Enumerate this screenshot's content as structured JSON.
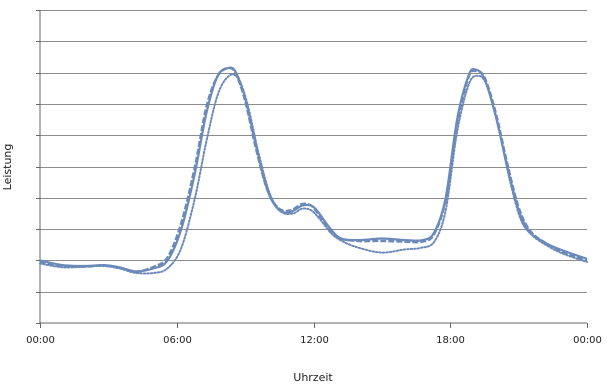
{
  "chart_data": {
    "type": "line",
    "title": "",
    "xlabel": "Uhrzeit",
    "ylabel": "Leistung",
    "x_unit": "hours",
    "xlim": [
      0,
      24
    ],
    "ylim": [
      0,
      10
    ],
    "y_gridlines": [
      1,
      2,
      3,
      4,
      5,
      6,
      7,
      8,
      9,
      10
    ],
    "x_ticks": [
      {
        "value": 0,
        "label": "00:00"
      },
      {
        "value": 6,
        "label": "06:00"
      },
      {
        "value": 12,
        "label": "12:00"
      },
      {
        "value": 18,
        "label": "18:00"
      },
      {
        "value": 24,
        "label": "00:00"
      }
    ],
    "grid": true,
    "legend": "none",
    "line_color": "#6b8ab9",
    "series": [
      {
        "style": "solid",
        "points": [
          [
            0,
            2.0
          ],
          [
            1,
            1.85
          ],
          [
            2,
            1.82
          ],
          [
            2.8,
            1.85
          ],
          [
            3.5,
            1.78
          ],
          [
            4.2,
            1.65
          ],
          [
            5,
            1.75
          ],
          [
            5.6,
            2.0
          ],
          [
            6.2,
            3.0
          ],
          [
            6.8,
            4.8
          ],
          [
            7.3,
            6.7
          ],
          [
            7.8,
            7.9
          ],
          [
            8.3,
            8.15
          ],
          [
            8.6,
            8.0
          ],
          [
            9.0,
            7.2
          ],
          [
            9.5,
            5.6
          ],
          [
            10.0,
            4.2
          ],
          [
            10.5,
            3.6
          ],
          [
            11.0,
            3.55
          ],
          [
            11.5,
            3.75
          ],
          [
            11.9,
            3.75
          ],
          [
            12.2,
            3.55
          ],
          [
            12.7,
            3.05
          ],
          [
            13.2,
            2.7
          ],
          [
            14.0,
            2.65
          ],
          [
            15.0,
            2.7
          ],
          [
            16.0,
            2.65
          ],
          [
            16.8,
            2.65
          ],
          [
            17.3,
            2.9
          ],
          [
            17.8,
            4.0
          ],
          [
            18.3,
            6.5
          ],
          [
            18.8,
            7.9
          ],
          [
            19.1,
            8.1
          ],
          [
            19.5,
            7.8
          ],
          [
            20.0,
            6.6
          ],
          [
            20.5,
            5.0
          ],
          [
            21.0,
            3.6
          ],
          [
            21.5,
            2.9
          ],
          [
            22.2,
            2.55
          ],
          [
            23.0,
            2.3
          ],
          [
            24.0,
            2.05
          ]
        ]
      },
      {
        "style": "dashed",
        "points": [
          [
            0,
            1.95
          ],
          [
            1,
            1.82
          ],
          [
            2,
            1.8
          ],
          [
            2.8,
            1.84
          ],
          [
            3.5,
            1.76
          ],
          [
            4.2,
            1.64
          ],
          [
            5,
            1.8
          ],
          [
            5.6,
            2.1
          ],
          [
            6.2,
            3.2
          ],
          [
            6.8,
            5.0
          ],
          [
            7.3,
            6.9
          ],
          [
            7.8,
            7.9
          ],
          [
            8.3,
            8.15
          ],
          [
            8.6,
            7.95
          ],
          [
            9.0,
            7.1
          ],
          [
            9.5,
            5.5
          ],
          [
            10.0,
            4.2
          ],
          [
            10.5,
            3.65
          ],
          [
            11.0,
            3.6
          ],
          [
            11.5,
            3.8
          ],
          [
            11.9,
            3.75
          ],
          [
            12.2,
            3.5
          ],
          [
            12.7,
            3.0
          ],
          [
            13.2,
            2.7
          ],
          [
            14.0,
            2.62
          ],
          [
            15.0,
            2.62
          ],
          [
            16.0,
            2.6
          ],
          [
            16.8,
            2.6
          ],
          [
            17.3,
            2.85
          ],
          [
            17.8,
            3.95
          ],
          [
            18.3,
            6.4
          ],
          [
            18.8,
            7.85
          ],
          [
            19.1,
            8.05
          ],
          [
            19.5,
            7.85
          ],
          [
            20.0,
            6.7
          ],
          [
            20.5,
            5.1
          ],
          [
            21.0,
            3.7
          ],
          [
            21.5,
            2.95
          ],
          [
            22.2,
            2.55
          ],
          [
            23.0,
            2.25
          ],
          [
            24.0,
            2.0
          ]
        ]
      },
      {
        "style": "dotted",
        "points": [
          [
            0,
            1.9
          ],
          [
            1,
            1.78
          ],
          [
            2,
            1.8
          ],
          [
            2.8,
            1.82
          ],
          [
            3.5,
            1.74
          ],
          [
            4.2,
            1.6
          ],
          [
            5,
            1.6
          ],
          [
            5.6,
            1.75
          ],
          [
            6.2,
            2.4
          ],
          [
            6.8,
            4.0
          ],
          [
            7.3,
            5.8
          ],
          [
            7.8,
            7.3
          ],
          [
            8.3,
            7.9
          ],
          [
            8.7,
            7.8
          ],
          [
            9.1,
            7.0
          ],
          [
            9.6,
            5.4
          ],
          [
            10.1,
            4.1
          ],
          [
            10.6,
            3.55
          ],
          [
            11.1,
            3.5
          ],
          [
            11.5,
            3.65
          ],
          [
            11.9,
            3.6
          ],
          [
            12.3,
            3.3
          ],
          [
            12.8,
            2.85
          ],
          [
            13.3,
            2.6
          ],
          [
            14.0,
            2.4
          ],
          [
            15.0,
            2.25
          ],
          [
            16.0,
            2.35
          ],
          [
            16.7,
            2.4
          ],
          [
            17.3,
            2.6
          ],
          [
            17.8,
            3.6
          ],
          [
            18.3,
            6.1
          ],
          [
            18.8,
            7.6
          ],
          [
            19.2,
            7.9
          ],
          [
            19.6,
            7.6
          ],
          [
            20.1,
            6.3
          ],
          [
            20.6,
            4.6
          ],
          [
            21.1,
            3.3
          ],
          [
            21.6,
            2.8
          ],
          [
            22.3,
            2.45
          ],
          [
            23.0,
            2.2
          ],
          [
            24.0,
            1.95
          ]
        ]
      }
    ]
  }
}
